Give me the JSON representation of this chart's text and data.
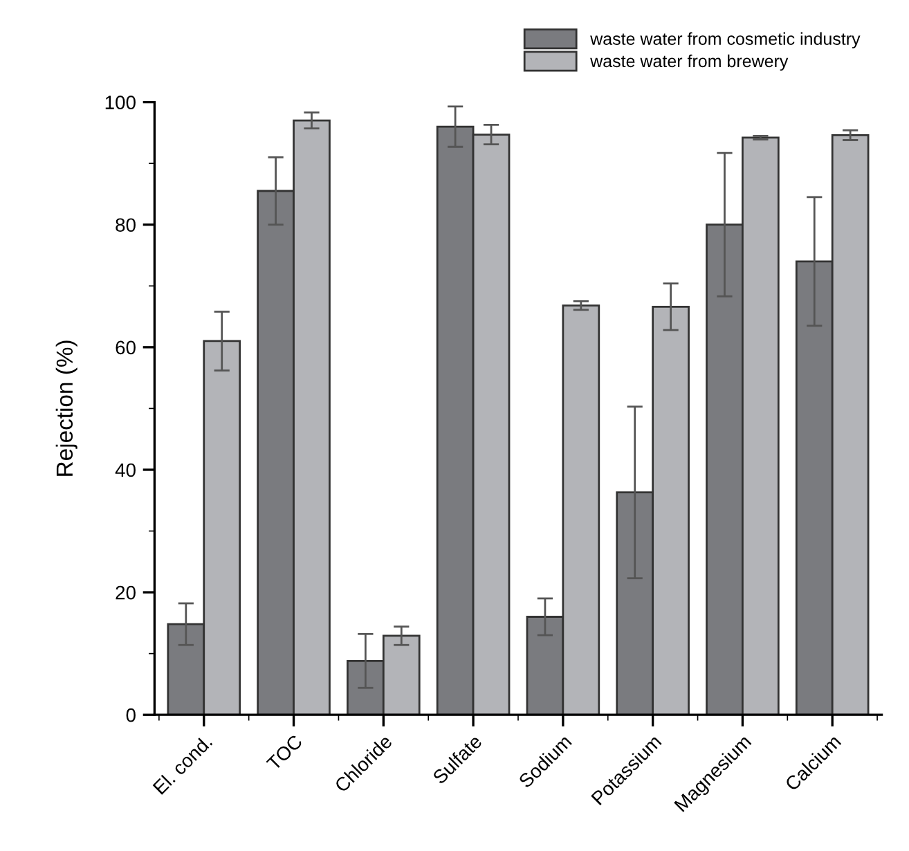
{
  "chart_data": {
    "type": "bar",
    "ylabel": "Rejection (%)",
    "categories": [
      "El. cond.",
      "TOC",
      "Chloride",
      "Sulfate",
      "Sodium",
      "Potassium",
      "Magnesium",
      "Calcium"
    ],
    "series": [
      {
        "name": "waste water from cosmetic industry",
        "color": "#7a7b7f",
        "values": [
          14.8,
          85.5,
          8.8,
          96,
          16,
          36.3,
          80,
          74
        ],
        "errors": [
          3.4,
          5.5,
          4.4,
          3.3,
          3,
          14,
          11.7,
          10.5
        ]
      },
      {
        "name": "waste water from brewery",
        "color": "#b3b4b8",
        "values": [
          61,
          97,
          12.9,
          94.7,
          66.8,
          66.6,
          94.2,
          94.6
        ],
        "errors": [
          4.8,
          1.3,
          1.5,
          1.6,
          0.7,
          3.8,
          0.3,
          0.8
        ]
      }
    ],
    "ylim": [
      0,
      100
    ],
    "yticks": [
      0,
      20,
      40,
      60,
      80,
      100
    ],
    "grid": false,
    "legend": "top right"
  }
}
